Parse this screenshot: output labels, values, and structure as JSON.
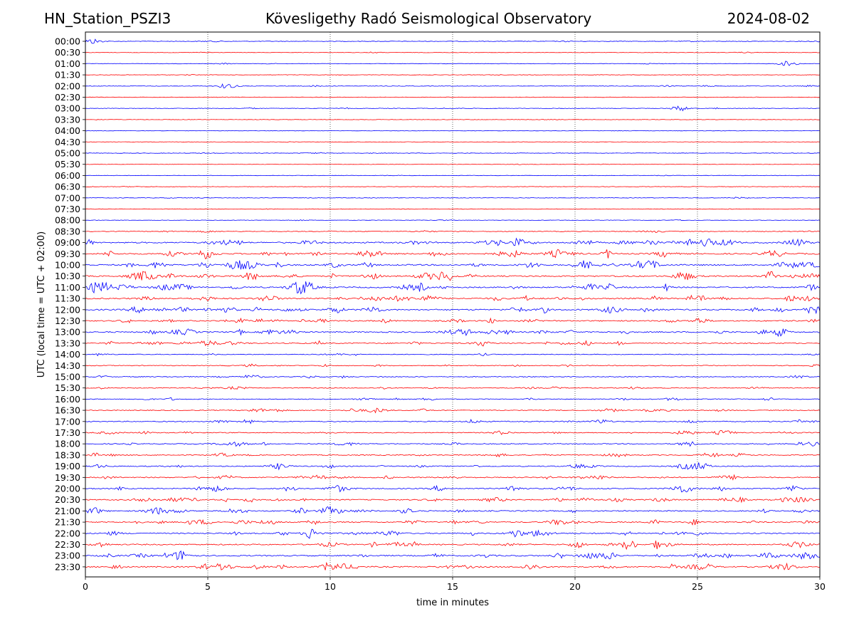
{
  "header": {
    "station": "HN_Station_PSZI3",
    "observatory": "Kövesligethy Radó Seismological Observatory",
    "date": "2024-08-02"
  },
  "chart_data": {
    "type": "line",
    "title": "Kövesligethy Radó Seismological Observatory",
    "xlabel": "time in minutes",
    "ylabel": "UTC (local time = UTC + 02:00)",
    "xlim": [
      0,
      30
    ],
    "x_ticks": [
      0,
      5,
      10,
      15,
      20,
      25,
      30
    ],
    "vertical_grid_minutes": [
      5,
      10,
      15,
      20,
      25
    ],
    "grid": "dotted vertical lines at x ticks",
    "rows": [
      "00:00",
      "00:30",
      "01:00",
      "01:30",
      "02:00",
      "02:30",
      "03:00",
      "03:30",
      "04:00",
      "04:30",
      "05:00",
      "05:30",
      "06:00",
      "06:30",
      "07:00",
      "07:30",
      "08:00",
      "08:30",
      "09:00",
      "09:30",
      "10:00",
      "10:30",
      "11:00",
      "11:30",
      "12:00",
      "12:30",
      "13:00",
      "13:30",
      "14:00",
      "14:30",
      "15:00",
      "15:30",
      "16:00",
      "16:30",
      "17:00",
      "17:30",
      "18:00",
      "18:30",
      "19:00",
      "19:30",
      "20:00",
      "20:30",
      "21:00",
      "21:30",
      "22:00",
      "22:30",
      "23:00",
      "23:30"
    ],
    "colors": {
      "hour_rows": "#0000ff",
      "half_hour_rows": "#ff0000"
    },
    "activity_level": [
      0.2,
      0.15,
      0.15,
      0.12,
      0.2,
      0.12,
      0.2,
      0.12,
      0.12,
      0.1,
      0.15,
      0.1,
      0.1,
      0.12,
      0.2,
      0.12,
      0.15,
      0.3,
      1.0,
      1.0,
      1.0,
      1.0,
      1.0,
      1.0,
      1.0,
      0.8,
      0.9,
      0.7,
      0.4,
      0.4,
      0.45,
      0.45,
      0.45,
      0.5,
      0.55,
      0.55,
      0.6,
      0.6,
      0.65,
      0.7,
      0.8,
      0.75,
      0.8,
      0.8,
      0.85,
      0.85,
      0.9,
      0.95
    ],
    "events": [
      {
        "row": "00:00",
        "minute": 0.3
      },
      {
        "row": "01:00",
        "minute": 28.7
      },
      {
        "row": "02:00",
        "minute": 5.8
      },
      {
        "row": "03:00",
        "minute": 24.3
      },
      {
        "row": "09:30",
        "minute": 5.0
      },
      {
        "row": "10:00",
        "minute": 29.8
      },
      {
        "row": "20:30",
        "minute": 2.4
      },
      {
        "row": "21:00",
        "minute": 10.0
      },
      {
        "row": "23:30",
        "minute": 10.5
      }
    ]
  }
}
